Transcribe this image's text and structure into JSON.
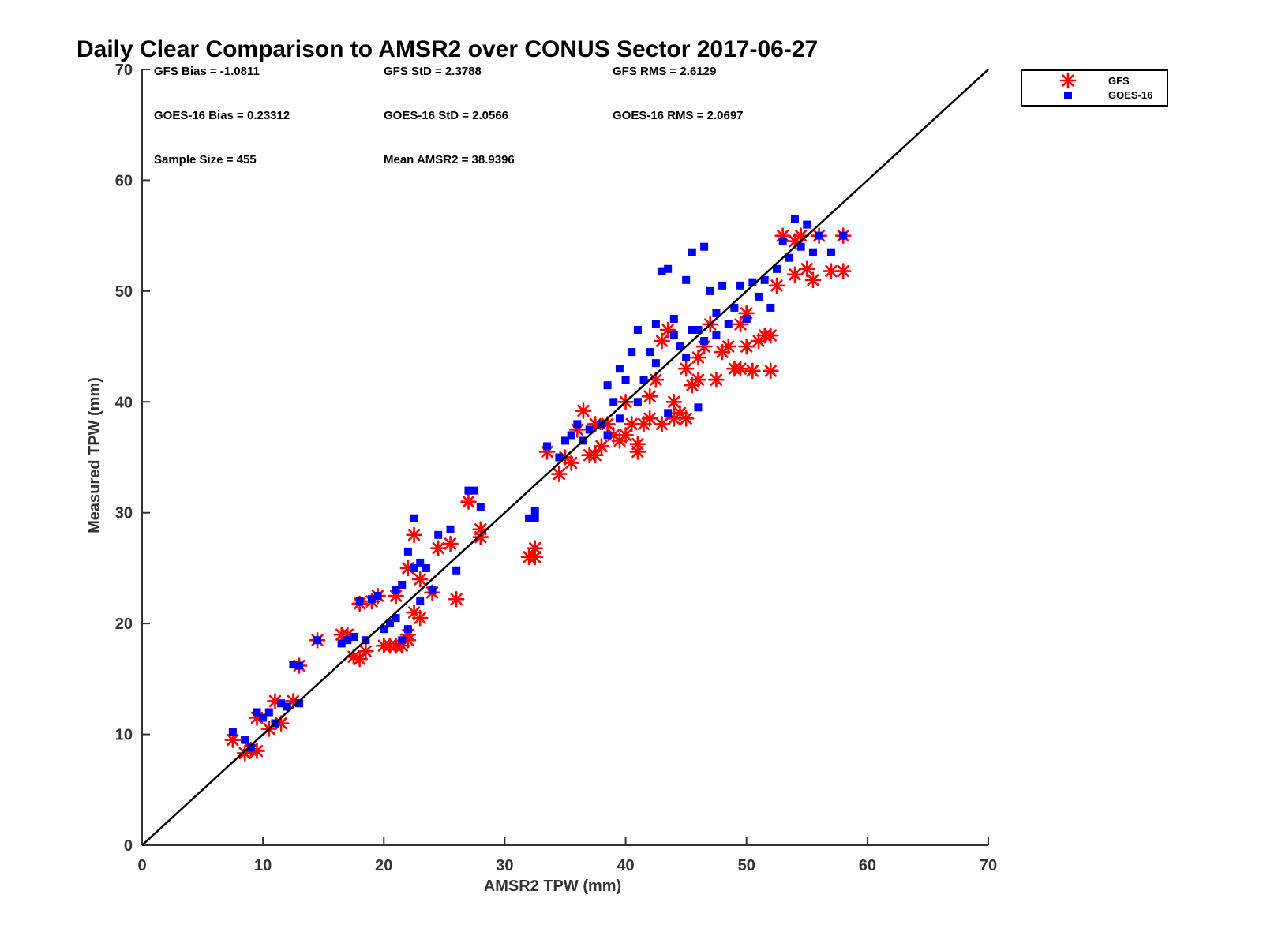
{
  "chart_data": {
    "type": "scatter",
    "title": "Daily Clear Comparison to AMSR2 over CONUS Sector 2017-06-27",
    "xlabel": "AMSR2 TPW (mm)",
    "ylabel": "Measured TPW (mm)",
    "xlim": [
      0,
      70
    ],
    "ylim": [
      0,
      70
    ],
    "xticks": [
      "0",
      "10",
      "20",
      "30",
      "40",
      "50",
      "60",
      "70"
    ],
    "yticks": [
      "0",
      "10",
      "20",
      "30",
      "40",
      "50",
      "60",
      "70"
    ],
    "grid": false,
    "legend_position": "outside-top-right",
    "reference_line": [
      [
        0,
        0
      ],
      [
        70,
        70
      ]
    ],
    "stats": {
      "gfs_bias": "GFS Bias = -1.0811",
      "gfs_std": "GFS StD = 2.3788",
      "gfs_rms": "GFS RMS = 2.6129",
      "goes_bias": "GOES-16 Bias = 0.23312",
      "goes_std": "GOES-16 StD = 2.0566",
      "goes_rms": "GOES-16 RMS = 2.0697",
      "sample_size": "Sample Size = 455",
      "mean_amsr2": "Mean AMSR2 = 38.9396"
    },
    "series": [
      {
        "name": "GFS",
        "marker": "asterisk",
        "color": "#ff0000",
        "points": [
          [
            7.5,
            9.5
          ],
          [
            8.5,
            8.3
          ],
          [
            9.0,
            8.6
          ],
          [
            9.5,
            8.5
          ],
          [
            9.5,
            11.5
          ],
          [
            10.5,
            10.5
          ],
          [
            11.0,
            13.0
          ],
          [
            11.5,
            11.0
          ],
          [
            12.5,
            13.0
          ],
          [
            13.0,
            16.2
          ],
          [
            14.5,
            18.5
          ],
          [
            16.5,
            19.0
          ],
          [
            17.0,
            19.0
          ],
          [
            17.5,
            17.0
          ],
          [
            18.0,
            21.8
          ],
          [
            18.0,
            16.8
          ],
          [
            18.5,
            17.5
          ],
          [
            19.0,
            22.0
          ],
          [
            19.5,
            22.5
          ],
          [
            20.0,
            18.0
          ],
          [
            20.5,
            18.0
          ],
          [
            21.0,
            18.0
          ],
          [
            21.0,
            22.5
          ],
          [
            21.5,
            18.0
          ],
          [
            22.0,
            19.0
          ],
          [
            22.0,
            18.5
          ],
          [
            22.5,
            21.0
          ],
          [
            22.5,
            28.0
          ],
          [
            22.0,
            25.0
          ],
          [
            23.0,
            20.5
          ],
          [
            23.0,
            24.0
          ],
          [
            24.0,
            22.8
          ],
          [
            24.5,
            26.8
          ],
          [
            25.5,
            27.2
          ],
          [
            26.0,
            22.2
          ],
          [
            27.0,
            31.0
          ],
          [
            28.0,
            28.5
          ],
          [
            28.0,
            27.8
          ],
          [
            32.0,
            26.0
          ],
          [
            32.5,
            26.8
          ],
          [
            32.5,
            26.0
          ],
          [
            33.5,
            35.5
          ],
          [
            34.5,
            33.5
          ],
          [
            35.0,
            35.0
          ],
          [
            35.5,
            34.5
          ],
          [
            36.0,
            37.5
          ],
          [
            36.5,
            39.2
          ],
          [
            37.0,
            35.2
          ],
          [
            37.5,
            38.0
          ],
          [
            37.5,
            35.2
          ],
          [
            38.0,
            36.0
          ],
          [
            38.5,
            38.0
          ],
          [
            39.0,
            37.0
          ],
          [
            39.5,
            36.5
          ],
          [
            40.0,
            37.0
          ],
          [
            40.0,
            40.0
          ],
          [
            40.5,
            38.0
          ],
          [
            41.0,
            35.5
          ],
          [
            41.0,
            36.2
          ],
          [
            41.5,
            38.0
          ],
          [
            42.0,
            38.5
          ],
          [
            42.0,
            40.5
          ],
          [
            42.5,
            42.0
          ],
          [
            43.0,
            38.0
          ],
          [
            43.0,
            45.5
          ],
          [
            43.5,
            46.5
          ],
          [
            44.0,
            38.5
          ],
          [
            44.0,
            40.0
          ],
          [
            44.5,
            39.0
          ],
          [
            45.0,
            38.5
          ],
          [
            45.0,
            43.0
          ],
          [
            45.5,
            41.5
          ],
          [
            46.0,
            44.0
          ],
          [
            46.0,
            42.0
          ],
          [
            46.5,
            45.0
          ],
          [
            47.0,
            47.0
          ],
          [
            47.5,
            42.0
          ],
          [
            48.0,
            44.5
          ],
          [
            48.5,
            45.0
          ],
          [
            49.0,
            43.0
          ],
          [
            49.5,
            47.0
          ],
          [
            49.5,
            43.0
          ],
          [
            50.0,
            48.0
          ],
          [
            50.0,
            45.0
          ],
          [
            50.5,
            42.8
          ],
          [
            51.0,
            45.5
          ],
          [
            51.5,
            46.0
          ],
          [
            52.0,
            46.0
          ],
          [
            52.0,
            42.8
          ],
          [
            52.5,
            50.5
          ],
          [
            53.0,
            55.0
          ],
          [
            54.0,
            54.5
          ],
          [
            54.0,
            51.5
          ],
          [
            54.5,
            55.0
          ],
          [
            55.0,
            52.0
          ],
          [
            55.5,
            51.0
          ],
          [
            56.0,
            55.0
          ],
          [
            57.0,
            51.8
          ],
          [
            58.0,
            51.8
          ],
          [
            58.0,
            55.0
          ]
        ]
      },
      {
        "name": "GOES-16",
        "marker": "square",
        "color": "#0000ff",
        "points": [
          [
            7.5,
            10.2
          ],
          [
            8.5,
            9.5
          ],
          [
            9.0,
            8.8
          ],
          [
            9.5,
            12.0
          ],
          [
            10.0,
            11.5
          ],
          [
            10.5,
            12.0
          ],
          [
            11.0,
            11.0
          ],
          [
            11.5,
            12.8
          ],
          [
            12.0,
            12.5
          ],
          [
            12.5,
            16.3
          ],
          [
            13.0,
            12.8
          ],
          [
            13.0,
            16.2
          ],
          [
            14.5,
            18.5
          ],
          [
            16.5,
            18.2
          ],
          [
            17.0,
            18.5
          ],
          [
            17.5,
            18.8
          ],
          [
            18.0,
            22.0
          ],
          [
            18.5,
            18.5
          ],
          [
            19.0,
            22.2
          ],
          [
            19.5,
            22.5
          ],
          [
            20.0,
            19.5
          ],
          [
            20.5,
            20.0
          ],
          [
            21.0,
            20.5
          ],
          [
            21.0,
            23.0
          ],
          [
            21.5,
            18.5
          ],
          [
            21.5,
            23.5
          ],
          [
            22.0,
            19.5
          ],
          [
            22.0,
            26.5
          ],
          [
            22.5,
            25.0
          ],
          [
            22.5,
            29.5
          ],
          [
            23.0,
            25.5
          ],
          [
            23.0,
            22.0
          ],
          [
            23.5,
            25.0
          ],
          [
            24.0,
            23.0
          ],
          [
            24.5,
            28.0
          ],
          [
            25.5,
            28.5
          ],
          [
            26.0,
            24.8
          ],
          [
            27.0,
            32.0
          ],
          [
            27.5,
            32.0
          ],
          [
            28.0,
            30.5
          ],
          [
            32.0,
            29.5
          ],
          [
            32.5,
            30.2
          ],
          [
            32.5,
            29.5
          ],
          [
            33.5,
            36.0
          ],
          [
            34.5,
            35.0
          ],
          [
            35.0,
            36.5
          ],
          [
            35.5,
            37.0
          ],
          [
            36.0,
            38.0
          ],
          [
            36.5,
            36.5
          ],
          [
            37.0,
            37.5
          ],
          [
            38.0,
            38.0
          ],
          [
            38.5,
            41.5
          ],
          [
            39.0,
            40.0
          ],
          [
            39.5,
            43.0
          ],
          [
            40.0,
            42.0
          ],
          [
            40.5,
            44.5
          ],
          [
            41.0,
            46.5
          ],
          [
            41.5,
            42.0
          ],
          [
            42.0,
            44.5
          ],
          [
            42.5,
            47.0
          ],
          [
            43.0,
            51.8
          ],
          [
            43.5,
            52.0
          ],
          [
            44.0,
            46.0
          ],
          [
            44.5,
            45.0
          ],
          [
            45.0,
            44.0
          ],
          [
            45.0,
            51.0
          ],
          [
            45.5,
            53.5
          ],
          [
            46.0,
            46.5
          ],
          [
            46.5,
            54.0
          ],
          [
            47.0,
            50.0
          ],
          [
            47.5,
            48.0
          ],
          [
            48.0,
            50.5
          ],
          [
            48.5,
            47.0
          ],
          [
            49.0,
            48.5
          ],
          [
            49.5,
            50.5
          ],
          [
            50.0,
            47.5
          ],
          [
            50.5,
            50.8
          ],
          [
            51.0,
            49.5
          ],
          [
            51.5,
            51.0
          ],
          [
            52.0,
            48.5
          ],
          [
            52.5,
            52.0
          ],
          [
            53.0,
            54.5
          ],
          [
            53.5,
            53.0
          ],
          [
            54.0,
            56.5
          ],
          [
            54.5,
            54.0
          ],
          [
            55.0,
            56.0
          ],
          [
            55.5,
            53.5
          ],
          [
            56.0,
            55.0
          ],
          [
            57.0,
            53.5
          ],
          [
            58.0,
            55.0
          ],
          [
            38.5,
            37.0
          ],
          [
            39.5,
            38.5
          ],
          [
            41.0,
            40.0
          ],
          [
            42.5,
            43.5
          ],
          [
            44.0,
            47.5
          ],
          [
            45.5,
            46.5
          ],
          [
            46.5,
            45.5
          ],
          [
            47.5,
            46.0
          ],
          [
            43.5,
            39.0
          ],
          [
            46.0,
            39.5
          ]
        ]
      }
    ]
  }
}
